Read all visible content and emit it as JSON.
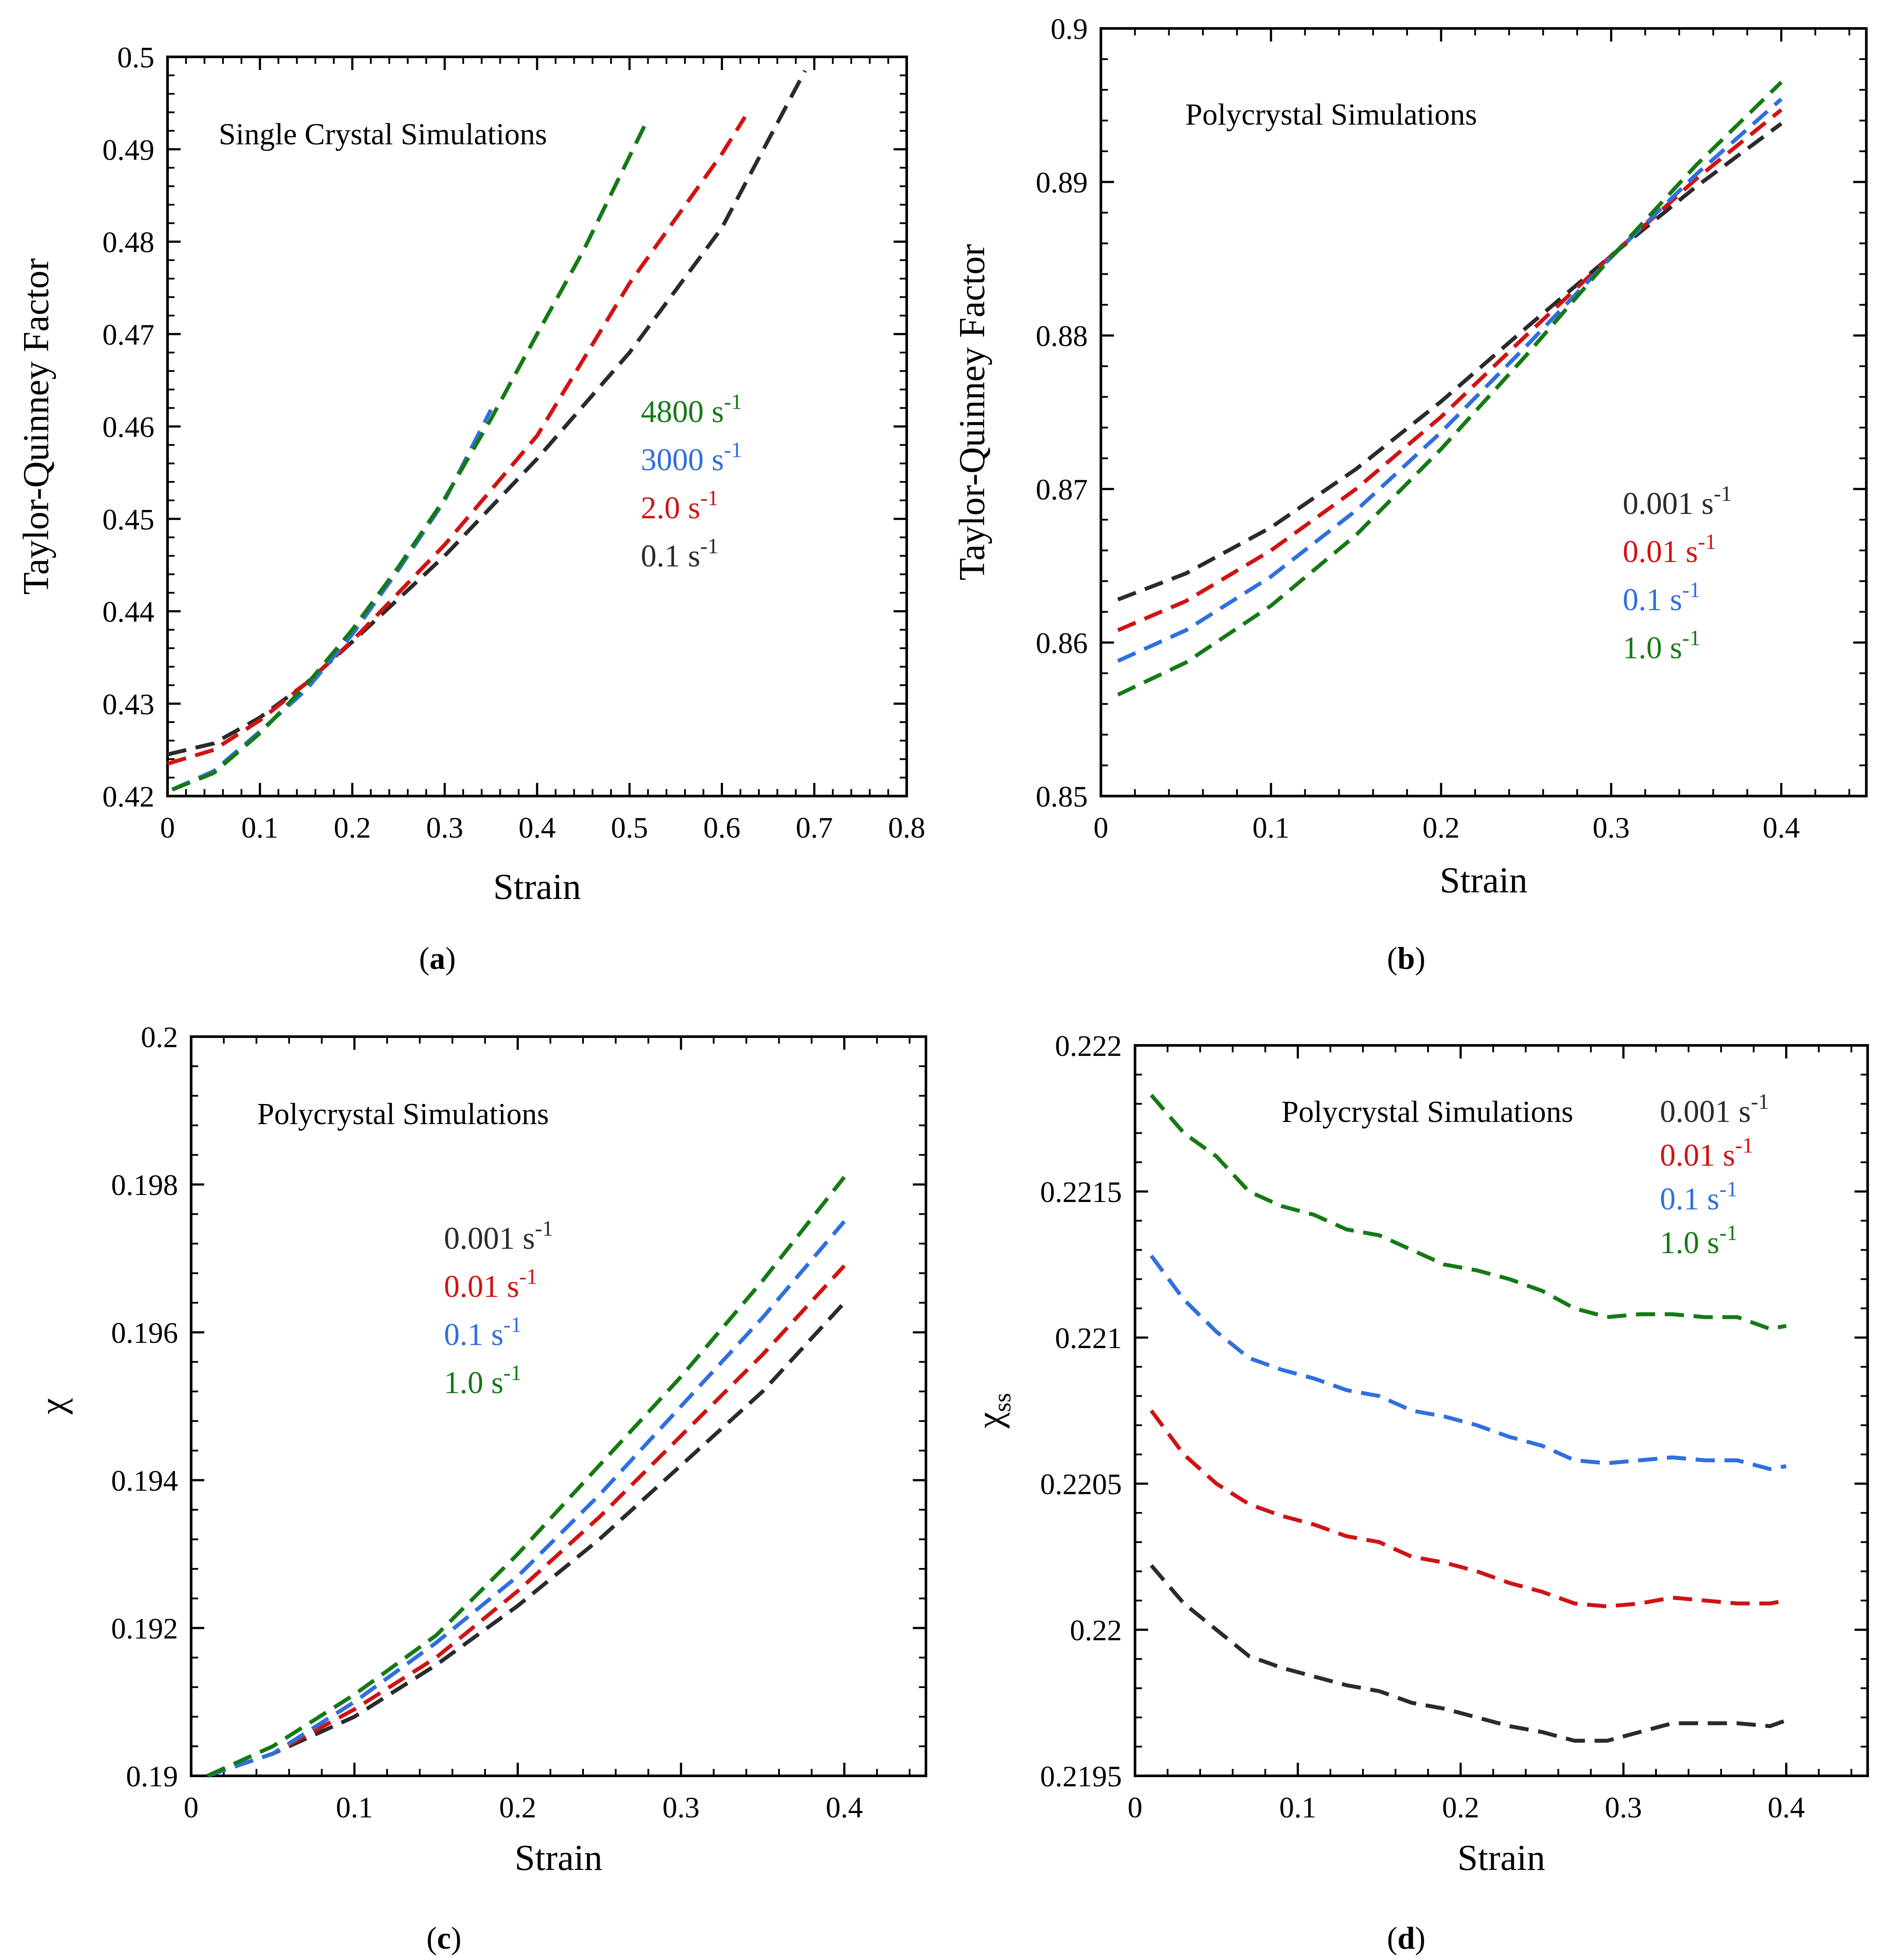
{
  "colors": {
    "green": "#157a15",
    "blue": "#2f6fe0",
    "red": "#d11313",
    "black": "#2b2b2b"
  },
  "chart_data": [
    {
      "panel": "a",
      "type": "line",
      "caption": "a",
      "annotation": "Single Crystal Simulations",
      "xlabel": "Strain",
      "ylabel": "Taylor-Quinney Factor",
      "xlim": [
        0,
        0.8
      ],
      "ylim": [
        0.42,
        0.5
      ],
      "xticks": [
        0,
        0.1,
        0.2,
        0.3,
        0.4,
        0.5,
        0.6,
        0.7,
        0.8
      ],
      "xtick_labels": [
        "0",
        "0.1",
        "0.2",
        "0.3",
        "0.4",
        "0.5",
        "0.6",
        "0.7",
        "0.8"
      ],
      "yticks": [
        0.42,
        0.43,
        0.44,
        0.45,
        0.46,
        0.47,
        0.48,
        0.49,
        0.5
      ],
      "ytick_labels": [
        "0.42",
        "0.43",
        "0.44",
        "0.45",
        "0.46",
        "0.47",
        "0.48",
        "0.49",
        "0.5"
      ],
      "legend": [
        {
          "value": "4800 s",
          "exp": "-1",
          "color": "green"
        },
        {
          "value": "3000 s",
          "exp": "-1",
          "color": "blue"
        },
        {
          "value": "2.0 s",
          "exp": "-1",
          "color": "red"
        },
        {
          "value": "0.1 s",
          "exp": "-1",
          "color": "black"
        }
      ],
      "series": [
        {
          "name": "0.1 s-1",
          "color": "black",
          "x": [
            0,
            0.05,
            0.1,
            0.15,
            0.2,
            0.3,
            0.4,
            0.5,
            0.6,
            0.69
          ],
          "y": [
            0.4245,
            0.4257,
            0.4285,
            0.4322,
            0.4367,
            0.446,
            0.4565,
            0.468,
            0.4815,
            0.4985
          ]
        },
        {
          "name": "2.0 s-1",
          "color": "red",
          "x": [
            0,
            0.05,
            0.1,
            0.15,
            0.2,
            0.3,
            0.4,
            0.5,
            0.6,
            0.625
          ],
          "y": [
            0.4235,
            0.425,
            0.4282,
            0.4322,
            0.4368,
            0.4472,
            0.459,
            0.4755,
            0.4895,
            0.4935
          ]
        },
        {
          "name": "3000 s-1",
          "color": "blue",
          "x": [
            0.005,
            0.05,
            0.1,
            0.15,
            0.2,
            0.25,
            0.3,
            0.35
          ],
          "y": [
            0.4207,
            0.4227,
            0.427,
            0.4315,
            0.4375,
            0.4445,
            0.452,
            0.4618
          ]
        },
        {
          "name": "4800 s-1",
          "color": "green",
          "x": [
            0.005,
            0.05,
            0.1,
            0.15,
            0.2,
            0.25,
            0.3,
            0.35,
            0.4,
            0.45,
            0.52
          ],
          "y": [
            0.4207,
            0.4225,
            0.4268,
            0.432,
            0.438,
            0.4448,
            0.4522,
            0.4608,
            0.47,
            0.479,
            0.4933
          ]
        }
      ]
    },
    {
      "panel": "b",
      "type": "line",
      "caption": "b",
      "annotation": "Polycrystal Simulations",
      "xlabel": "Strain",
      "ylabel": "Taylor-Quinney Factor",
      "xlim": [
        0,
        0.45
      ],
      "ylim": [
        0.85,
        0.9
      ],
      "xticks": [
        0,
        0.1,
        0.2,
        0.3,
        0.4
      ],
      "xtick_labels": [
        "0",
        "0.1",
        "0.2",
        "0.3",
        "0.4"
      ],
      "yticks": [
        0.85,
        0.86,
        0.87,
        0.88,
        0.89,
        0.9
      ],
      "ytick_labels": [
        "0.85",
        "0.86",
        "0.87",
        "0.88",
        "0.89",
        "0.9"
      ],
      "legend": [
        {
          "value": "0.001 s",
          "exp": "-1",
          "color": "black"
        },
        {
          "value": "0.01 s",
          "exp": "-1",
          "color": "red"
        },
        {
          "value": "0.1 s",
          "exp": "-1",
          "color": "blue"
        },
        {
          "value": "1.0 s",
          "exp": "-1",
          "color": "green"
        }
      ],
      "series": [
        {
          "name": "0.001 s-1",
          "color": "black",
          "x": [
            0.01,
            0.05,
            0.1,
            0.15,
            0.2,
            0.25,
            0.3,
            0.35,
            0.4
          ],
          "y": [
            0.8628,
            0.8645,
            0.8675,
            0.8713,
            0.8757,
            0.8805,
            0.8852,
            0.8897,
            0.8938
          ]
        },
        {
          "name": "0.01 s-1",
          "color": "red",
          "x": [
            0.01,
            0.05,
            0.1,
            0.15,
            0.2,
            0.25,
            0.3,
            0.35,
            0.4
          ],
          "y": [
            0.8608,
            0.8627,
            0.866,
            0.87,
            0.8747,
            0.88,
            0.8852,
            0.8902,
            0.8947
          ]
        },
        {
          "name": "0.1 s-1",
          "color": "blue",
          "x": [
            0.01,
            0.05,
            0.1,
            0.15,
            0.2,
            0.25,
            0.3,
            0.35,
            0.4
          ],
          "y": [
            0.8588,
            0.8608,
            0.8643,
            0.8686,
            0.8737,
            0.8793,
            0.8851,
            0.8905,
            0.8954
          ]
        },
        {
          "name": "1.0 s-1",
          "color": "green",
          "x": [
            0.01,
            0.05,
            0.1,
            0.15,
            0.2,
            0.25,
            0.3,
            0.35,
            0.4
          ],
          "y": [
            0.8566,
            0.8587,
            0.8624,
            0.867,
            0.8726,
            0.8787,
            0.8851,
            0.8911,
            0.8965
          ]
        }
      ]
    },
    {
      "panel": "c",
      "type": "line",
      "caption": "c",
      "annotation": "Polycrystal Simulations",
      "xlabel": "Strain",
      "ylabel": "χ",
      "xlim": [
        0,
        0.45
      ],
      "ylim": [
        0.19,
        0.2
      ],
      "xticks": [
        0,
        0.1,
        0.2,
        0.3,
        0.4
      ],
      "xtick_labels": [
        "0",
        "0.1",
        "0.2",
        "0.3",
        "0.4"
      ],
      "yticks": [
        0.19,
        0.192,
        0.194,
        0.196,
        0.198,
        0.2
      ],
      "ytick_labels": [
        "0.19",
        "0.192",
        "0.194",
        "0.196",
        "0.198",
        "0.2"
      ],
      "legend": [
        {
          "value": "0.001 s",
          "exp": "-1",
          "color": "black"
        },
        {
          "value": "0.01 s",
          "exp": "-1",
          "color": "red"
        },
        {
          "value": "0.1 s",
          "exp": "-1",
          "color": "blue"
        },
        {
          "value": "1.0 s",
          "exp": "-1",
          "color": "green"
        }
      ],
      "series": [
        {
          "name": "0.001 s-1",
          "color": "black",
          "x": [
            0.01,
            0.05,
            0.1,
            0.15,
            0.2,
            0.25,
            0.3,
            0.35,
            0.4
          ],
          "y": [
            0.19,
            0.1903,
            0.1908,
            0.1915,
            0.1923,
            0.1932,
            0.1942,
            0.1952,
            0.1964
          ]
        },
        {
          "name": "0.01 s-1",
          "color": "red",
          "x": [
            0.01,
            0.05,
            0.1,
            0.15,
            0.2,
            0.25,
            0.3,
            0.35,
            0.4
          ],
          "y": [
            0.19,
            0.1903,
            0.1909,
            0.1916,
            0.1925,
            0.1935,
            0.1946,
            0.1957,
            0.1969
          ]
        },
        {
          "name": "0.1 s-1",
          "color": "blue",
          "x": [
            0.01,
            0.05,
            0.1,
            0.15,
            0.2,
            0.25,
            0.3,
            0.35,
            0.4
          ],
          "y": [
            0.19,
            0.1903,
            0.191,
            0.1918,
            0.1927,
            0.1938,
            0.195,
            0.1962,
            0.1975
          ]
        },
        {
          "name": "1.0 s-1",
          "color": "green",
          "x": [
            0.01,
            0.05,
            0.1,
            0.15,
            0.2,
            0.25,
            0.3,
            0.35,
            0.4
          ],
          "y": [
            0.19,
            0.1904,
            0.1911,
            0.1919,
            0.193,
            0.1942,
            0.1954,
            0.1967,
            0.1981
          ]
        }
      ]
    },
    {
      "panel": "d",
      "type": "line",
      "caption": "d",
      "annotation": "Polycrystal Simulations",
      "xlabel": "Strain",
      "ylabel": "χ",
      "ylabel_sub": "ss",
      "xlim": [
        0,
        0.45
      ],
      "ylim": [
        0.2195,
        0.222
      ],
      "xticks": [
        0,
        0.1,
        0.2,
        0.3,
        0.4
      ],
      "xtick_labels": [
        "0",
        "0.1",
        "0.2",
        "0.3",
        "0.4"
      ],
      "yticks": [
        0.2195,
        0.22,
        0.2205,
        0.221,
        0.2215,
        0.222
      ],
      "ytick_labels": [
        "0.2195",
        "0.22",
        "0.2205",
        "0.221",
        "0.2215",
        "0.222"
      ],
      "legend": [
        {
          "value": "0.001 s",
          "exp": "-1",
          "color": "black"
        },
        {
          "value": "0.01 s",
          "exp": "-1",
          "color": "red"
        },
        {
          "value": "0.1 s",
          "exp": "-1",
          "color": "blue"
        },
        {
          "value": "1.0 s",
          "exp": "-1",
          "color": "green"
        }
      ],
      "series": [
        {
          "name": "1.0 s-1",
          "color": "green",
          "x": [
            0.01,
            0.03,
            0.05,
            0.07,
            0.09,
            0.11,
            0.13,
            0.15,
            0.17,
            0.19,
            0.21,
            0.23,
            0.25,
            0.27,
            0.29,
            0.31,
            0.33,
            0.35,
            0.37,
            0.39,
            0.4
          ],
          "y": [
            0.22183,
            0.2217,
            0.22162,
            0.2215,
            0.22145,
            0.22142,
            0.22137,
            0.22135,
            0.2213,
            0.22125,
            0.22123,
            0.2212,
            0.22116,
            0.2211,
            0.22107,
            0.22108,
            0.22108,
            0.22107,
            0.22107,
            0.22103,
            0.22104
          ]
        },
        {
          "name": "0.1 s-1",
          "color": "blue",
          "x": [
            0.01,
            0.03,
            0.05,
            0.07,
            0.09,
            0.11,
            0.13,
            0.15,
            0.17,
            0.19,
            0.21,
            0.23,
            0.25,
            0.27,
            0.29,
            0.31,
            0.33,
            0.35,
            0.37,
            0.39,
            0.4
          ],
          "y": [
            0.22128,
            0.22113,
            0.22102,
            0.22093,
            0.22089,
            0.22086,
            0.22082,
            0.2208,
            0.22075,
            0.22073,
            0.2207,
            0.22066,
            0.22063,
            0.22058,
            0.22057,
            0.22058,
            0.22059,
            0.22058,
            0.22058,
            0.22055,
            0.22056
          ]
        },
        {
          "name": "0.01 s-1",
          "color": "red",
          "x": [
            0.01,
            0.03,
            0.05,
            0.07,
            0.09,
            0.11,
            0.13,
            0.15,
            0.17,
            0.19,
            0.21,
            0.23,
            0.25,
            0.27,
            0.29,
            0.31,
            0.33,
            0.35,
            0.37,
            0.39,
            0.4
          ],
          "y": [
            0.22075,
            0.2206,
            0.2205,
            0.22043,
            0.22039,
            0.22036,
            0.22032,
            0.2203,
            0.22025,
            0.22023,
            0.2202,
            0.22016,
            0.22013,
            0.22009,
            0.22008,
            0.22009,
            0.22011,
            0.2201,
            0.22009,
            0.22009,
            0.2201
          ]
        },
        {
          "name": "0.001 s-1",
          "color": "black",
          "x": [
            0.01,
            0.03,
            0.05,
            0.07,
            0.09,
            0.11,
            0.13,
            0.15,
            0.17,
            0.19,
            0.21,
            0.23,
            0.25,
            0.27,
            0.29,
            0.31,
            0.33,
            0.35,
            0.37,
            0.39,
            0.4
          ],
          "y": [
            0.22022,
            0.22009,
            0.22,
            0.21991,
            0.21987,
            0.21984,
            0.21981,
            0.21979,
            0.21975,
            0.21973,
            0.2197,
            0.21967,
            0.21965,
            0.21962,
            0.21962,
            0.21965,
            0.21968,
            0.21968,
            0.21968,
            0.21967,
            0.21969
          ]
        }
      ]
    }
  ]
}
